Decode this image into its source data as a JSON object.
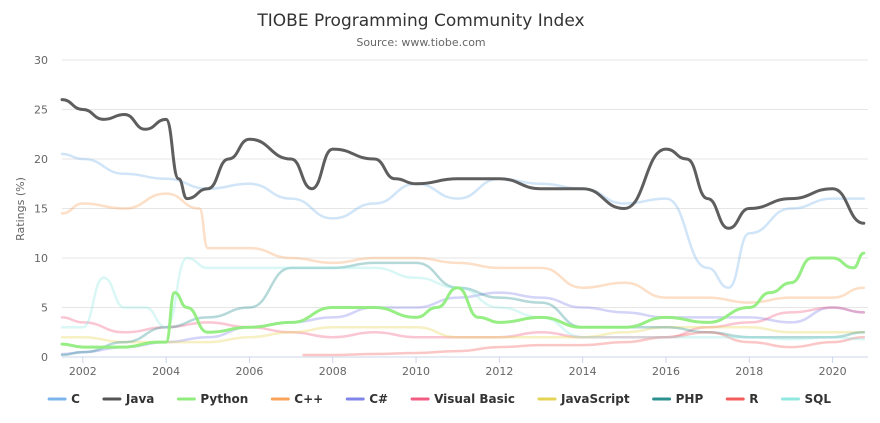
{
  "chart_data": {
    "type": "line",
    "title": "TIOBE Programming Community Index",
    "subtitle": "Source: www.tiobe.com",
    "ylabel": "Ratings (%)",
    "xlabel": "",
    "xlim": [
      2001.5,
      2020.85
    ],
    "ylim": [
      0,
      30
    ],
    "x_ticks": [
      2002,
      2004,
      2006,
      2008,
      2010,
      2012,
      2014,
      2016,
      2018,
      2020
    ],
    "y_ticks": [
      0,
      5,
      10,
      15,
      20,
      25,
      30
    ],
    "grid": true,
    "legend": "bottom",
    "highlighted_series": [
      "Java",
      "Python"
    ],
    "series": [
      {
        "name": "C",
        "color": "#7cb5ec",
        "x": [
          2001.5,
          2002,
          2003,
          2004,
          2005,
          2006,
          2007,
          2008,
          2009,
          2010,
          2011,
          2012,
          2013,
          2014,
          2015,
          2016,
          2017,
          2017.5,
          2018,
          2019,
          2020,
          2020.75
        ],
        "values": [
          20.5,
          20,
          18.5,
          18,
          17,
          17.5,
          16,
          14,
          15.5,
          17.5,
          16,
          18,
          17.5,
          17,
          15.5,
          16,
          9,
          7,
          12.5,
          15,
          16,
          16
        ]
      },
      {
        "name": "Java",
        "color": "#555555",
        "x": [
          2001.5,
          2002,
          2002.5,
          2003,
          2003.5,
          2004,
          2004.3,
          2004.5,
          2005,
          2005.5,
          2006,
          2007,
          2007.5,
          2008,
          2009,
          2009.5,
          2010,
          2011,
          2012,
          2013,
          2014,
          2015,
          2016,
          2016.5,
          2017,
          2017.5,
          2018,
          2019,
          2020,
          2020.75
        ],
        "values": [
          26,
          25,
          24,
          24.5,
          23,
          24,
          18,
          16,
          17,
          20,
          22,
          20,
          17,
          21,
          20,
          18,
          17.5,
          18,
          18,
          17,
          17,
          15,
          21,
          20,
          16,
          13,
          15,
          16,
          17,
          13.5
        ]
      },
      {
        "name": "Python",
        "color": "#90ed7d",
        "x": [
          2001.5,
          2002,
          2003,
          2003.8,
          2004,
          2004.2,
          2004.5,
          2005,
          2006,
          2007,
          2008,
          2009,
          2010,
          2010.5,
          2011,
          2011.5,
          2012,
          2013,
          2014,
          2015,
          2016,
          2017,
          2018,
          2018.5,
          2019,
          2019.5,
          2020,
          2020.5,
          2020.75
        ],
        "values": [
          1.3,
          1,
          1,
          1.5,
          1.5,
          6.5,
          5,
          2.5,
          3,
          3.5,
          5,
          5,
          4,
          5,
          7,
          4,
          3.5,
          4,
          3,
          3,
          4,
          3.5,
          5,
          6.5,
          7.5,
          10,
          10,
          9,
          10.5
        ]
      },
      {
        "name": "C++",
        "color": "#f7a35c",
        "x": [
          2001.5,
          2002,
          2003,
          2004,
          2004.8,
          2005,
          2006,
          2007,
          2008,
          2009,
          2010,
          2011,
          2012,
          2013,
          2014,
          2015,
          2016,
          2017,
          2018,
          2019,
          2020,
          2020.75
        ],
        "values": [
          14.5,
          15.5,
          15,
          16.5,
          15,
          11,
          11,
          10,
          9.5,
          10,
          10,
          9.5,
          9,
          9,
          7,
          7.5,
          6,
          6,
          5.5,
          6,
          6,
          7
        ]
      },
      {
        "name": "C#",
        "color": "#8085e9",
        "x": [
          2001.5,
          2002,
          2003,
          2004,
          2005,
          2006,
          2007,
          2008,
          2009,
          2010,
          2011,
          2012,
          2013,
          2014,
          2015,
          2016,
          2017,
          2018,
          2019,
          2020,
          2020.75
        ],
        "values": [
          0.3,
          0.5,
          1,
          1.5,
          2,
          3,
          3.5,
          4,
          5,
          5,
          6,
          6.5,
          6,
          5,
          4.5,
          4,
          4,
          4,
          3.5,
          5,
          4.5
        ]
      },
      {
        "name": "Visual Basic",
        "color": "#f15c80",
        "x": [
          2001.5,
          2002,
          2003,
          2004,
          2005,
          2006,
          2007,
          2008,
          2009,
          2010,
          2011,
          2012,
          2013,
          2014,
          2015,
          2016,
          2017,
          2018,
          2019,
          2020,
          2020.75
        ],
        "values": [
          4,
          3.5,
          2.5,
          3,
          3.5,
          3,
          2.5,
          2,
          2.5,
          2,
          2,
          2,
          2.5,
          2,
          2,
          2,
          3,
          3.5,
          4.5,
          5,
          4.5
        ]
      },
      {
        "name": "JavaScript",
        "color": "#e4d354",
        "x": [
          2001.5,
          2002,
          2003,
          2004,
          2005,
          2006,
          2007,
          2008,
          2009,
          2010,
          2011,
          2012,
          2013,
          2014,
          2015,
          2016,
          2017,
          2018,
          2019,
          2020,
          2020.75
        ],
        "values": [
          2,
          2,
          1.5,
          1.5,
          1.5,
          2,
          2.5,
          3,
          3,
          3,
          2,
          2,
          2,
          2,
          2.5,
          3,
          3,
          3,
          2.5,
          2.5,
          2.5
        ]
      },
      {
        "name": "PHP",
        "color": "#2b908f",
        "x": [
          2001.5,
          2002,
          2003,
          2004,
          2005,
          2006,
          2007,
          2008,
          2009,
          2010,
          2011,
          2012,
          2013,
          2014,
          2015,
          2016,
          2017,
          2018,
          2019,
          2020,
          2020.75
        ],
        "values": [
          0.2,
          0.5,
          1.5,
          3,
          4,
          5,
          9,
          9,
          9.5,
          9.5,
          7,
          6,
          5.5,
          3,
          3,
          3,
          2.5,
          2,
          2,
          2,
          2.5
        ]
      },
      {
        "name": "R",
        "color": "#f45b5b",
        "x": [
          2007.3,
          2008,
          2009,
          2010,
          2011,
          2012,
          2013,
          2014,
          2015,
          2016,
          2017,
          2018,
          2019,
          2020,
          2020.75
        ],
        "values": [
          0.2,
          0.2,
          0.3,
          0.4,
          0.6,
          1,
          1.2,
          1.2,
          1.5,
          2,
          2.5,
          1.5,
          1,
          1.5,
          2
        ]
      },
      {
        "name": "SQL",
        "color": "#91e8e1",
        "x": [
          2001.5,
          2002,
          2002.5,
          2003,
          2003.5,
          2004,
          2004.5,
          2005,
          2006,
          2007,
          2008,
          2009,
          2010,
          2011,
          2012,
          2013,
          2014,
          2015,
          2016,
          2017,
          2018,
          2019,
          2020,
          2020.75
        ],
        "values": [
          3,
          3,
          8,
          5,
          5,
          3,
          10,
          9,
          9,
          9,
          9,
          9,
          8,
          7,
          5,
          4,
          2,
          2,
          2,
          2,
          2,
          1.8,
          2,
          1.8
        ]
      }
    ]
  }
}
